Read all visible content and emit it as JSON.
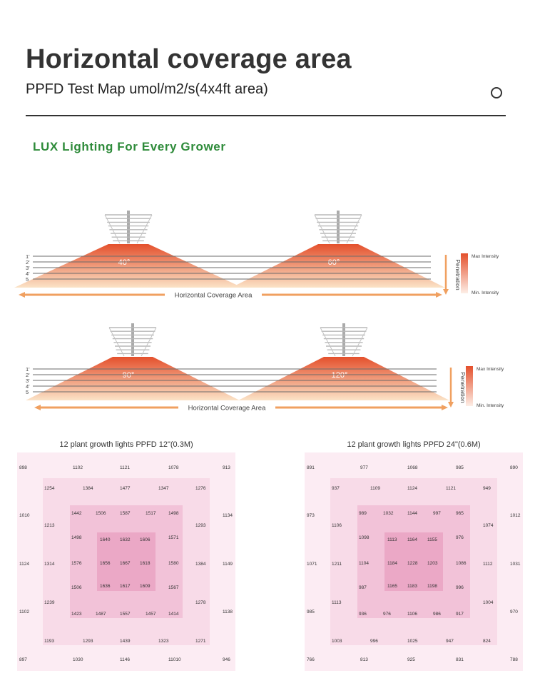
{
  "header": {
    "title": "Horizontal coverage area",
    "subtitle": "PPFD Test Map umol/m2/s(4x4ft area)",
    "tagline": "LUX Lighting For Every Grower"
  },
  "coverage": {
    "depth_labels": [
      "1'",
      "2'",
      "3'",
      "4'",
      "5"
    ],
    "area_label": "Horizontal Coverage Area",
    "penetration_label": "Penetration",
    "max_label": "Max Intensity",
    "min_label": "Min. Intensity",
    "angles_top": [
      "40°",
      "60°"
    ],
    "angles_bottom": [
      "90°",
      "120°"
    ],
    "colors": {
      "peak": "#e4502c",
      "fade": "#fbe3c7",
      "arrow": "#f0a060"
    }
  },
  "maps": [
    {
      "title": "12 plant growth lights  PPFD 12\"(0.3M)",
      "outer": {
        "top": [
          "898",
          "1102",
          "1121",
          "1078",
          "913"
        ],
        "left": [
          "1010",
          "1124",
          "1102"
        ],
        "right": [
          "1134",
          "1149",
          "1138"
        ],
        "bottom": [
          "897",
          "1030",
          "1146",
          "11010",
          "946"
        ]
      },
      "ring2": {
        "top": [
          "1254",
          "1384",
          "1477",
          "1347",
          "1276"
        ],
        "left": [
          "1213",
          "1314",
          "1239"
        ],
        "right": [
          "1293",
          "1384",
          "1278"
        ],
        "bottom": [
          "1193",
          "1293",
          "1439",
          "1323",
          "1271"
        ]
      },
      "ring3": {
        "top": [
          "1442",
          "1506",
          "1587",
          "1517",
          "1498"
        ],
        "left": [
          "1498",
          "1576",
          "1506"
        ],
        "right": [
          "1571",
          "1580",
          "1567"
        ],
        "bottom": [
          "1423",
          "1487",
          "1557",
          "1457",
          "1414"
        ]
      },
      "core": [
        [
          "1640",
          "1632",
          "1606"
        ],
        [
          "1656",
          "1667",
          "1618"
        ],
        [
          "1636",
          "1617",
          "1609"
        ]
      ]
    },
    {
      "title": "12 plant growth lights  PPFD 24\"(0.6M)",
      "outer": {
        "top": [
          "891",
          "977",
          "1068",
          "985",
          "890"
        ],
        "left": [
          "973",
          "1071",
          "985"
        ],
        "right": [
          "1012",
          "1031",
          "970"
        ],
        "bottom": [
          "766",
          "813",
          "925",
          "831",
          "788"
        ]
      },
      "ring2": {
        "top": [
          "937",
          "1109",
          "1124",
          "1121",
          "949"
        ],
        "left": [
          "1106",
          "1211",
          "1113"
        ],
        "right": [
          "1074",
          "1112",
          "1004"
        ],
        "bottom": [
          "1003",
          "996",
          "1025",
          "947",
          "824"
        ]
      },
      "ring3": {
        "top": [
          "989",
          "1032",
          "1144",
          "997",
          "965"
        ],
        "left": [
          "1098",
          "1104",
          "987"
        ],
        "right": [
          "976",
          "1086",
          "996"
        ],
        "bottom": [
          "936",
          "976",
          "1106",
          "986",
          "917"
        ]
      },
      "core": [
        [
          "1113",
          "1164",
          "1155"
        ],
        [
          "1184",
          "1228",
          "1203"
        ],
        [
          "1165",
          "1183",
          "1198"
        ]
      ]
    }
  ]
}
